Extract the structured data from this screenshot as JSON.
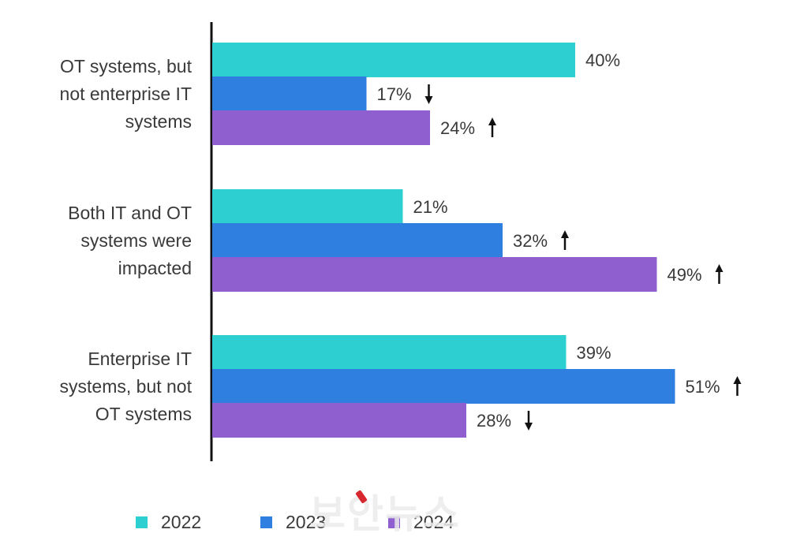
{
  "chart_data": {
    "type": "bar",
    "orientation": "horizontal",
    "categories": [
      [
        "OT systems, but",
        "not enterprise IT",
        "systems"
      ],
      [
        "Both IT and OT",
        "systems were",
        "impacted"
      ],
      [
        "Enterprise IT",
        "systems, but not",
        "OT systems"
      ]
    ],
    "series": [
      {
        "name": "2022",
        "color": "#2ecfd0",
        "values": [
          40,
          21,
          39
        ],
        "trend": [
          "",
          "",
          ""
        ]
      },
      {
        "name": "2023",
        "color": "#2e7fe0",
        "values": [
          17,
          32,
          51
        ],
        "trend": [
          "down",
          "up",
          "up"
        ]
      },
      {
        "name": "2024",
        "color": "#8f5fcf",
        "values": [
          24,
          49,
          28
        ],
        "trend": [
          "up",
          "up",
          "down"
        ]
      }
    ],
    "value_suffix": "%",
    "xlim": [
      0,
      60
    ],
    "grid": false,
    "legend_position": "bottom"
  },
  "watermark": "보안뉴스"
}
